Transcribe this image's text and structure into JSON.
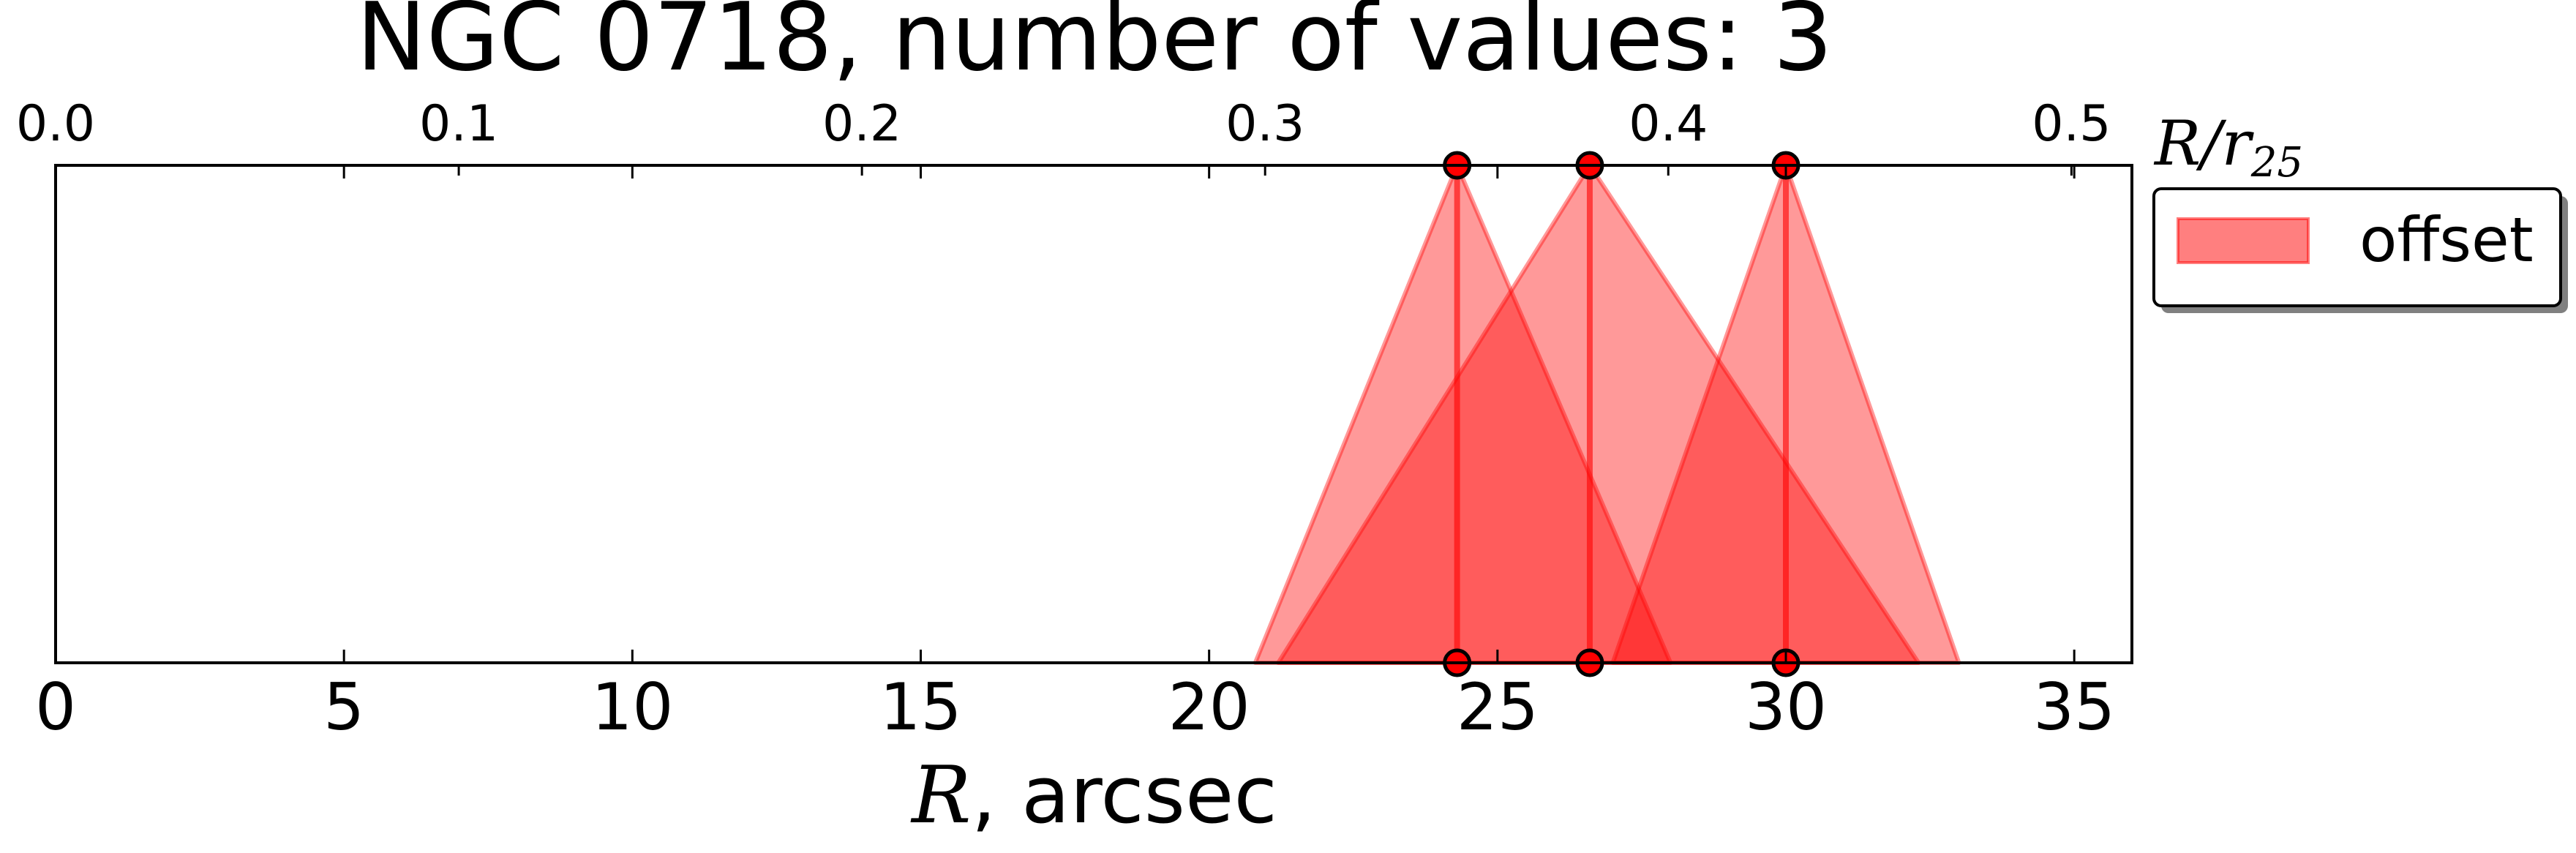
{
  "chart_data": {
    "type": "area",
    "title": "NGC 0718, number of values: 3",
    "xlabel": {
      "var": "R",
      "rest": ", arcsec"
    },
    "x2label": {
      "num": "R/r",
      "sub": "25"
    },
    "xlim": [
      0,
      36
    ],
    "x2lim": [
      0,
      0.515
    ],
    "xticks": [
      0,
      5,
      10,
      15,
      20,
      25,
      30,
      35
    ],
    "xtick_labels": [
      "0",
      "5",
      "10",
      "15",
      "20",
      "25",
      "30",
      "35"
    ],
    "x2ticks": [
      0.0,
      0.1,
      0.2,
      0.3,
      0.4,
      0.5
    ],
    "x2tick_labels": [
      "0.0",
      "0.1",
      "0.2",
      "0.3",
      "0.4",
      "0.5"
    ],
    "grid": false,
    "legend": {
      "placement": "outside-right-top",
      "entries": [
        "offset"
      ]
    },
    "series": [
      {
        "name": "offset",
        "color": "#ff0000",
        "values": [
          {
            "x": 24.3,
            "base_min": 20.8,
            "base_max": 28.0
          },
          {
            "x": 26.6,
            "base_min": 21.2,
            "base_max": 32.3
          },
          {
            "x": 30.0,
            "base_min": 27.0,
            "base_max": 33.0
          }
        ]
      }
    ]
  }
}
